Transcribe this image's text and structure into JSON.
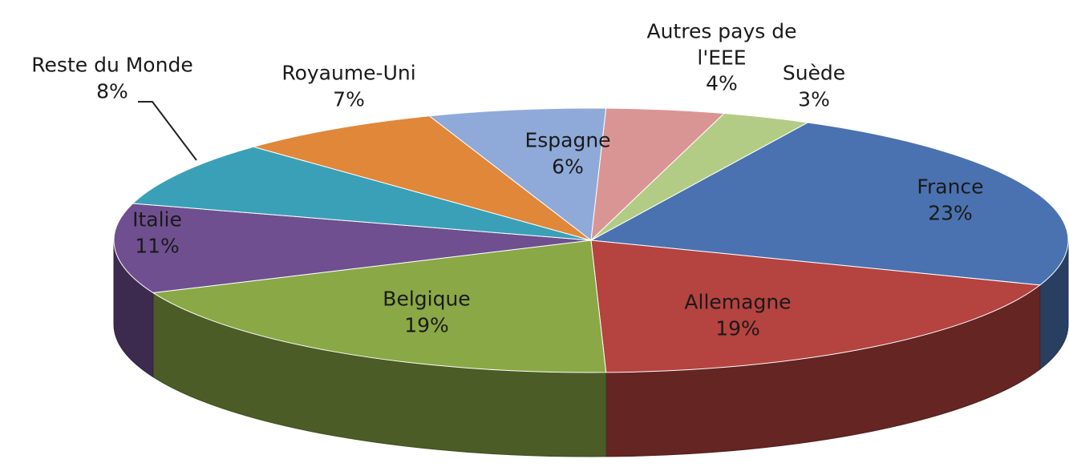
{
  "chart_data": {
    "type": "pie",
    "categories": [
      "France",
      "Allemagne",
      "Belgique",
      "Italie",
      "Reste du Monde",
      "Royaume-Uni",
      "Espagne",
      "Autres pays de l'EEE",
      "Suède"
    ],
    "values": [
      23,
      19,
      19,
      11,
      8,
      7,
      6,
      4,
      3
    ],
    "value_labels": [
      "23%",
      "19%",
      "19%",
      "11%",
      "8%",
      "7%",
      "6%",
      "4%",
      "3%"
    ],
    "colors": [
      "#4a72b0",
      "#b5433f",
      "#8aa845",
      "#6f4f8f",
      "#3aa0b8",
      "#e0873a",
      "#8faad8",
      "#d99594",
      "#b3cc85"
    ]
  }
}
